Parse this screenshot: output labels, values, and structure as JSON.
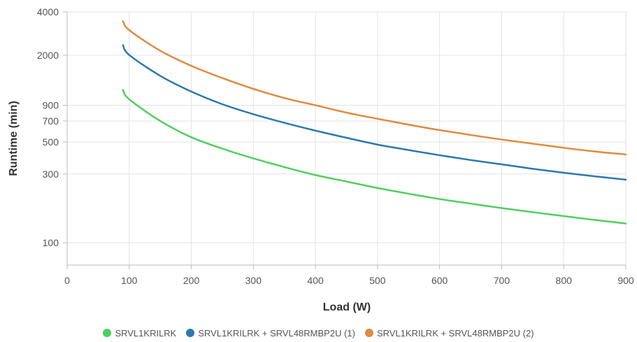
{
  "chart_data": {
    "type": "line",
    "xlabel": "Load (W)",
    "ylabel": "Runtime (min)",
    "xlim": [
      0,
      900
    ],
    "ylim": [
      70,
      4000
    ],
    "y_scale": "log",
    "grid": true,
    "legend_position": "bottom",
    "x_ticks": [
      "0",
      "100",
      "200",
      "300",
      "400",
      "500",
      "600",
      "700",
      "800",
      "900"
    ],
    "y_ticks": [
      "100",
      "300",
      "500",
      "700",
      "900",
      "2000",
      "4000"
    ],
    "x": [
      90,
      100,
      150,
      200,
      250,
      300,
      350,
      400,
      450,
      500,
      550,
      600,
      650,
      700,
      750,
      800,
      850,
      900
    ],
    "series": [
      {
        "name": "SRVL1KRILRK",
        "color": "#4fcf5f",
        "values": [
          1150,
          990,
          700,
          540,
          450,
          385,
          335,
          295,
          266,
          240,
          219,
          201,
          187,
          174,
          163,
          153,
          144,
          136
        ]
      },
      {
        "name": "SRVL1KRILRK + SRVL48RMBP2U (1)",
        "color": "#2c79ae",
        "values": [
          2350,
          2010,
          1440,
          1120,
          915,
          780,
          680,
          600,
          535,
          480,
          440,
          405,
          375,
          350,
          326,
          306,
          289,
          274
        ]
      },
      {
        "name": "SRVL1KRILRK + SRVL48RMBP2U (2)",
        "color": "#e08a3e",
        "values": [
          3450,
          2990,
          2150,
          1690,
          1390,
          1170,
          1010,
          900,
          800,
          725,
          660,
          605,
          560,
          520,
          487,
          456,
          430,
          410
        ]
      }
    ]
  }
}
